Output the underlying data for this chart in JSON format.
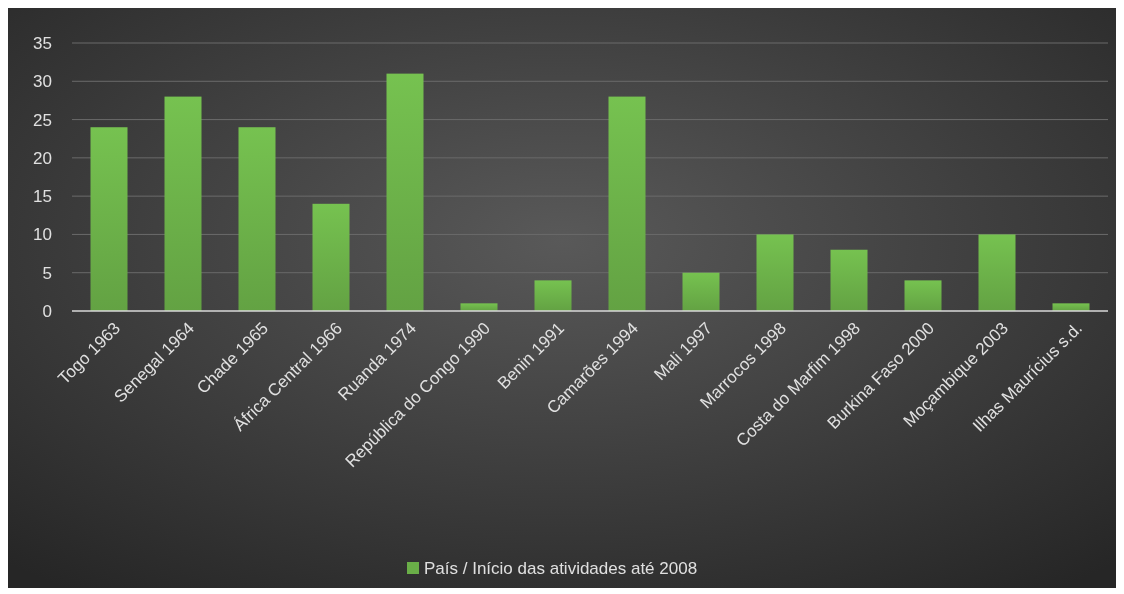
{
  "chart_data": {
    "type": "bar",
    "categories": [
      "Togo 1963",
      "Senegal 1964",
      "Chade 1965",
      "África Central 1966",
      "Ruanda 1974",
      "República do Congo 1990",
      "Benin 1991",
      "Camarões 1994",
      "Mali 1997",
      "Marrocos 1998",
      "Costa do Marfim 1998",
      "Burkina Faso 2000",
      "Moçambique 2003",
      "Ilhas Maurícius s.d."
    ],
    "series": [
      {
        "name": "País / Início das atividades até 2008",
        "color": "#6aae48",
        "values": [
          24,
          28,
          24,
          14,
          31,
          1,
          4,
          28,
          5,
          10,
          8,
          4,
          10,
          1
        ]
      }
    ],
    "ylim": [
      0,
      35
    ],
    "yticks": [
      0,
      5,
      10,
      15,
      20,
      25,
      30,
      35
    ],
    "grid": "y",
    "legend": "bottom"
  }
}
